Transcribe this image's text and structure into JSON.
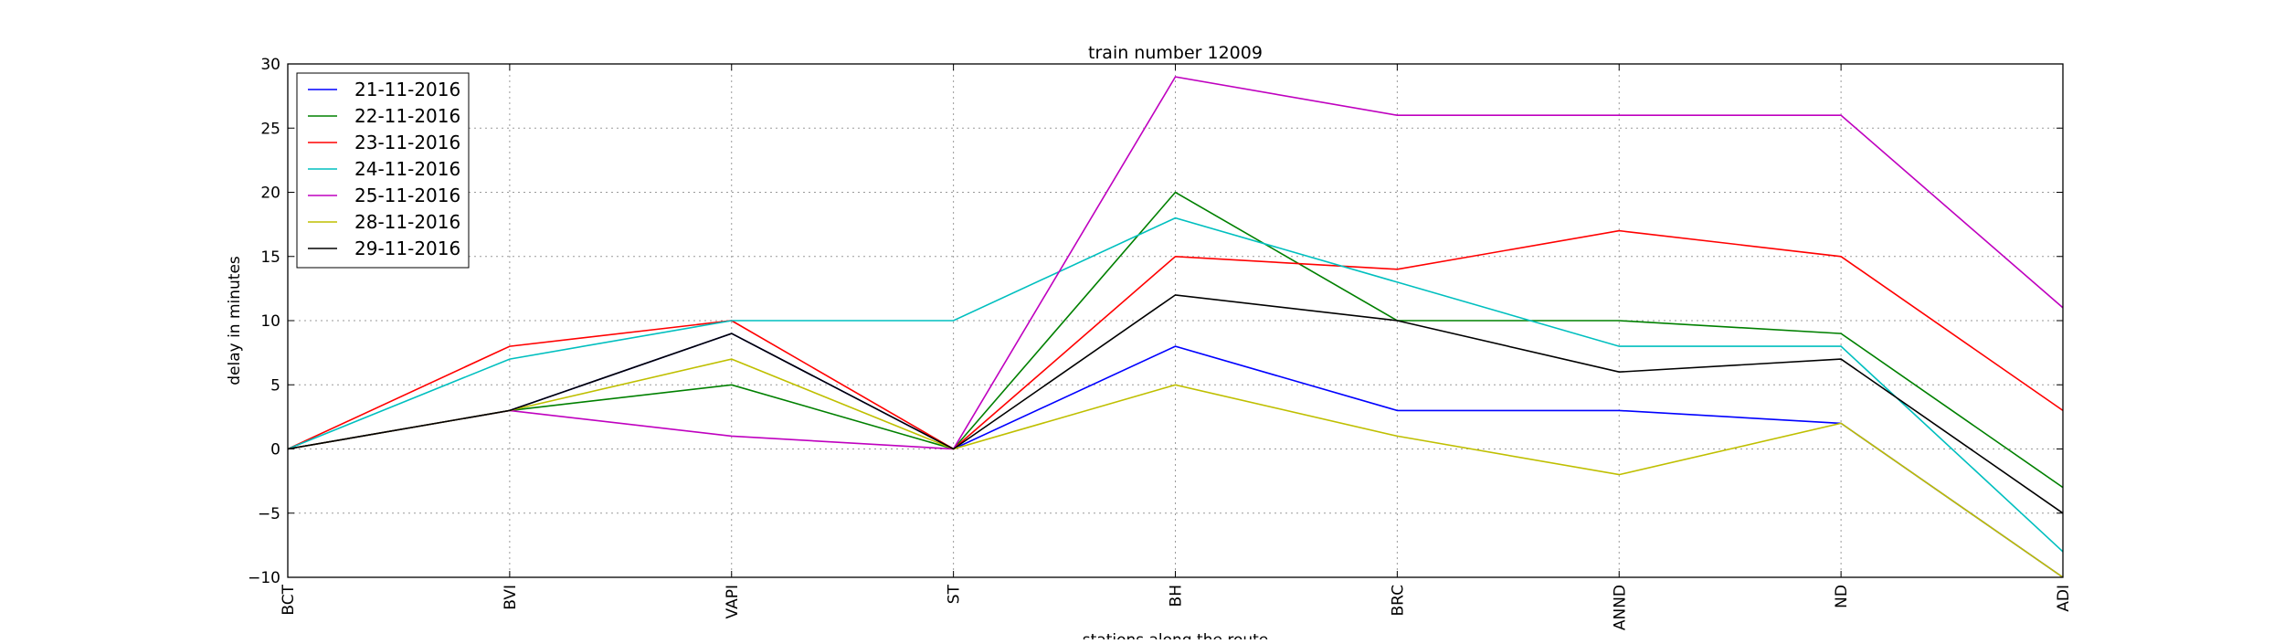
{
  "chart_data": {
    "type": "line",
    "title": "train number 12009",
    "xlabel": "stations along the route",
    "ylabel": "delay in minutes",
    "categories": [
      "BCT",
      "BVI",
      "VAPI",
      "ST",
      "BH",
      "BRC",
      "ANND",
      "ND",
      "ADI"
    ],
    "ylim": [
      -10,
      30
    ],
    "yticks": [
      -10,
      -5,
      0,
      5,
      10,
      15,
      20,
      25,
      30
    ],
    "ytick_labels": [
      "−10",
      "−5",
      "0",
      "5",
      "10",
      "15",
      "20",
      "25",
      "30"
    ],
    "grid": true,
    "legend_position": "top-left",
    "series": [
      {
        "name": "21-11-2016",
        "color": "#0000ff",
        "values": [
          0,
          3,
          9,
          0,
          8,
          3,
          3,
          2,
          -10
        ]
      },
      {
        "name": "22-11-2016",
        "color": "#008000",
        "values": [
          0,
          3,
          5,
          0,
          20,
          10,
          10,
          9,
          -3
        ]
      },
      {
        "name": "23-11-2016",
        "color": "#ff0000",
        "values": [
          0,
          8,
          10,
          0,
          15,
          14,
          17,
          15,
          3
        ]
      },
      {
        "name": "24-11-2016",
        "color": "#00bfbf",
        "values": [
          0,
          7,
          10,
          10,
          18,
          13,
          8,
          8,
          -8
        ]
      },
      {
        "name": "25-11-2016",
        "color": "#bf00bf",
        "values": [
          0,
          3,
          1,
          0,
          29,
          26,
          26,
          26,
          11
        ]
      },
      {
        "name": "28-11-2016",
        "color": "#bfbf00",
        "values": [
          0,
          3,
          7,
          0,
          5,
          1,
          -2,
          2,
          -10
        ]
      },
      {
        "name": "29-11-2016",
        "color": "#000000",
        "values": [
          0,
          3,
          9,
          0,
          12,
          10,
          6,
          7,
          -5
        ]
      }
    ]
  }
}
